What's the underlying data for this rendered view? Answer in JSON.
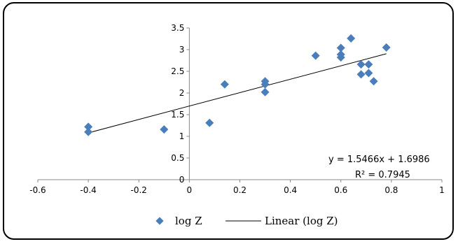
{
  "chart_data": {
    "type": "scatter",
    "title": "",
    "xlabel": "",
    "ylabel": "",
    "xlim": [
      -0.6,
      1
    ],
    "ylim": [
      0,
      3.5
    ],
    "x_ticks": [
      "-0.6",
      "-0.4",
      "-0.2",
      "0",
      "0.2",
      "0.4",
      "0.6",
      "0.8",
      "1"
    ],
    "y_ticks": [
      "0",
      "0.5",
      "1",
      "1.5",
      "2",
      "2.5",
      "3",
      "3.5"
    ],
    "grid": false,
    "legend_position": "bottom",
    "series": [
      {
        "name": "log Z",
        "marker": "diamond",
        "color": "#4a7ebb",
        "points": [
          {
            "x": -0.4,
            "y": 1.22
          },
          {
            "x": -0.4,
            "y": 1.1
          },
          {
            "x": -0.1,
            "y": 1.16
          },
          {
            "x": 0.08,
            "y": 1.31
          },
          {
            "x": 0.14,
            "y": 2.2
          },
          {
            "x": 0.3,
            "y": 2.27
          },
          {
            "x": 0.3,
            "y": 2.2
          },
          {
            "x": 0.3,
            "y": 2.02
          },
          {
            "x": 0.5,
            "y": 2.86
          },
          {
            "x": 0.6,
            "y": 3.04
          },
          {
            "x": 0.6,
            "y": 2.89
          },
          {
            "x": 0.6,
            "y": 2.82
          },
          {
            "x": 0.64,
            "y": 3.26
          },
          {
            "x": 0.68,
            "y": 2.66
          },
          {
            "x": 0.68,
            "y": 2.43
          },
          {
            "x": 0.71,
            "y": 2.66
          },
          {
            "x": 0.71,
            "y": 2.46
          },
          {
            "x": 0.73,
            "y": 2.27
          },
          {
            "x": 0.78,
            "y": 3.05
          }
        ]
      },
      {
        "name": "Linear (log Z)",
        "type": "line",
        "color": "#000000",
        "slope": 1.5466,
        "intercept": 1.6986,
        "x_range": [
          -0.4,
          0.78
        ]
      }
    ],
    "annotations": {
      "equation": "y = 1.5466x + 1.6986",
      "r_squared": "R² = 0.7945"
    }
  }
}
